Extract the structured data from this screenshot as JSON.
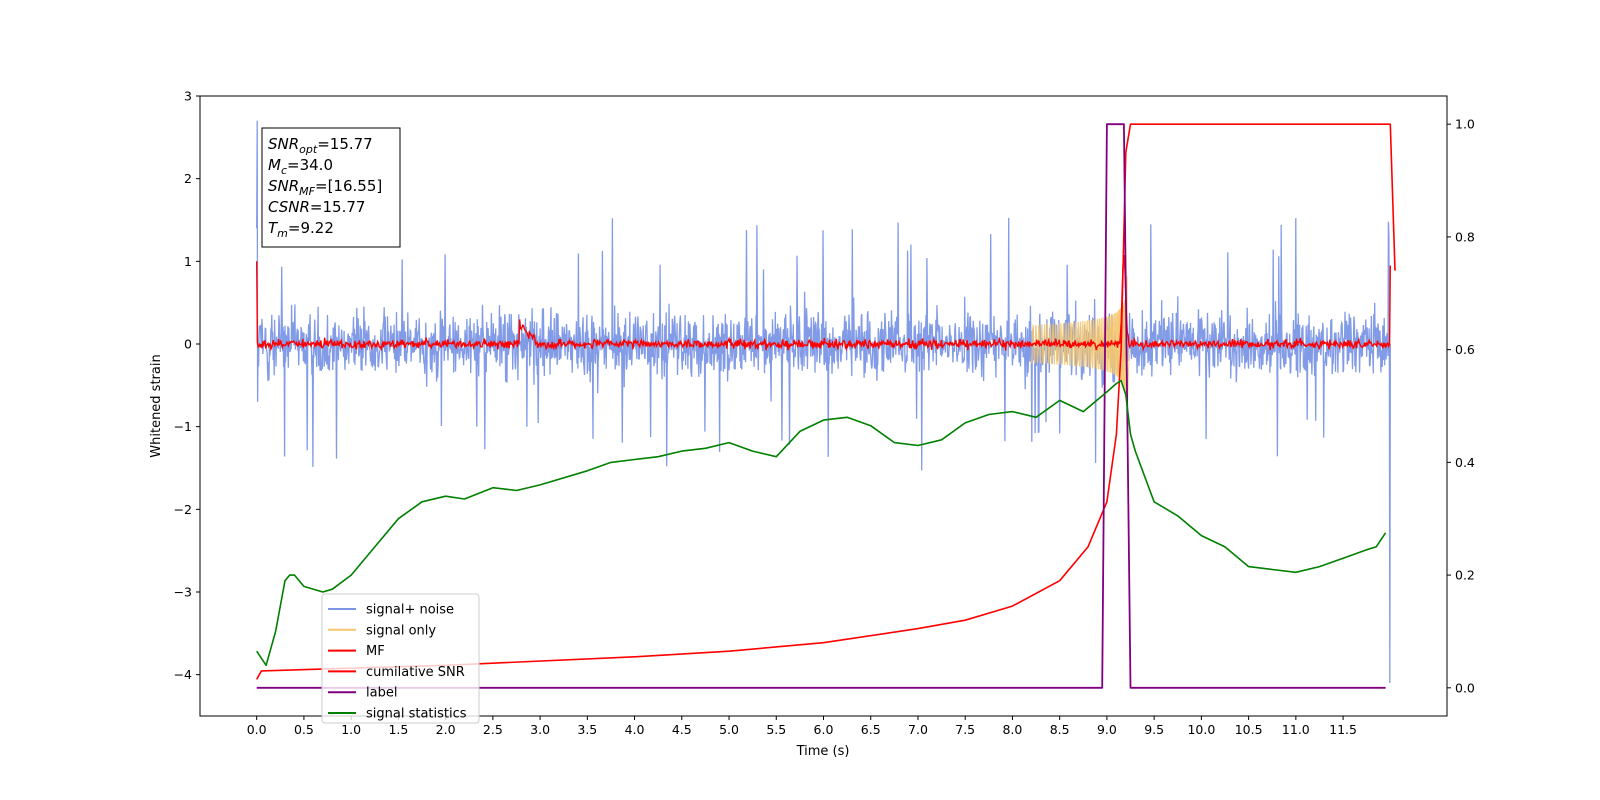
{
  "chart_data": {
    "type": "line",
    "xlabel": "Time (s)",
    "ylabel": "Whitened strain",
    "x_ticks": [
      "0.0",
      "0.5",
      "1.0",
      "1.5",
      "2.0",
      "2.5",
      "3.0",
      "3.5",
      "4.0",
      "4.5",
      "5.0",
      "5.5",
      "6.0",
      "6.5",
      "7.0",
      "7.5",
      "8.0",
      "8.5",
      "9.0",
      "9.5",
      "10.0",
      "10.5",
      "11.0",
      "11.5"
    ],
    "xlim": [
      -0.6,
      12.6
    ],
    "y_left_ticks": [
      "3",
      "2",
      "1",
      "0",
      "−1",
      "−2",
      "−3",
      "−4"
    ],
    "y_left_lim": [
      -4.5,
      3
    ],
    "y_right_ticks": [
      "1.0",
      "0.8",
      "0.6",
      "0.4",
      "0.2",
      "0.0"
    ],
    "y_right_lim": [
      -0.05,
      1.05
    ],
    "annotation": [
      {
        "sym": "SNR",
        "sub": "opt",
        "val": "=15.77"
      },
      {
        "sym": "M",
        "sub": "c",
        "val": "=34.0"
      },
      {
        "sym": "SNR",
        "sub": "MF",
        "val": "=[16.55]"
      },
      {
        "sym": "CSNR",
        "sub": "",
        "val": "=15.77"
      },
      {
        "sym": "T",
        "sub": "m",
        "val": "=9.22"
      }
    ],
    "legend_position": "lower-left",
    "series": [
      {
        "name": "signal+ noise",
        "color": "#7b96e6",
        "axis": "left",
        "desc": "whitened noisy strain, approx ±1 amplitude with spikes up to ~1.6 and a tail to 2.7"
      },
      {
        "name": "signal only",
        "color": "#f5c66e",
        "axis": "left",
        "desc": "chirp rising to amplitude ~0.9 at 9.2 s"
      },
      {
        "name": "MF",
        "color": "#ff0000",
        "axis": "left",
        "desc": "matched-filter output near 0 with bump at 2.8 s and peak 1.1 near 9.2 s"
      },
      {
        "name": "cumilative SNR",
        "color": "#ff0000",
        "axis": "right",
        "x": [
          0.0,
          0.05,
          2.0,
          4.0,
          5.0,
          6.0,
          7.0,
          7.5,
          8.0,
          8.5,
          8.8,
          9.0,
          9.1,
          9.15,
          9.2,
          9.25,
          12.0,
          12.05
        ],
        "values": [
          0.015,
          0.03,
          0.04,
          0.055,
          0.065,
          0.08,
          0.105,
          0.12,
          0.145,
          0.19,
          0.25,
          0.33,
          0.45,
          0.6,
          0.95,
          1.0,
          1.0,
          0.74
        ]
      },
      {
        "name": "label",
        "color": "#800080",
        "axis": "right",
        "x": [
          0.0,
          8.95,
          9.0,
          9.18,
          9.25,
          11.95
        ],
        "values": [
          0.0,
          0.0,
          1.0,
          1.0,
          0.0,
          0.0
        ]
      },
      {
        "name": "signal statistics",
        "color": "#008000",
        "axis": "right",
        "x": [
          0.0,
          0.1,
          0.2,
          0.3,
          0.35,
          0.4,
          0.5,
          0.7,
          0.8,
          1.0,
          1.25,
          1.5,
          1.75,
          2.0,
          2.2,
          2.5,
          2.75,
          3.0,
          3.5,
          3.75,
          4.0,
          4.25,
          4.5,
          4.75,
          5.0,
          5.25,
          5.5,
          5.75,
          6.0,
          6.25,
          6.5,
          6.75,
          7.0,
          7.25,
          7.5,
          7.75,
          8.0,
          8.25,
          8.5,
          8.75,
          9.0,
          9.1,
          9.15,
          9.2,
          9.25,
          9.3,
          9.5,
          9.75,
          10.0,
          10.25,
          10.5,
          10.75,
          11.0,
          11.25,
          11.5,
          11.75,
          11.85,
          11.95
        ],
        "values": [
          0.065,
          0.04,
          0.1,
          0.19,
          0.2,
          0.2,
          0.18,
          0.17,
          0.175,
          0.2,
          0.25,
          0.3,
          0.33,
          0.34,
          0.335,
          0.355,
          0.35,
          0.36,
          0.385,
          0.4,
          0.405,
          0.41,
          0.42,
          0.425,
          0.435,
          0.42,
          0.41,
          0.455,
          0.475,
          0.48,
          0.465,
          0.435,
          0.43,
          0.44,
          0.47,
          0.485,
          0.49,
          0.48,
          0.51,
          0.49,
          0.525,
          0.54,
          0.545,
          0.52,
          0.45,
          0.42,
          0.33,
          0.305,
          0.27,
          0.25,
          0.215,
          0.21,
          0.205,
          0.215,
          0.23,
          0.245,
          0.25,
          0.275
        ]
      }
    ]
  }
}
